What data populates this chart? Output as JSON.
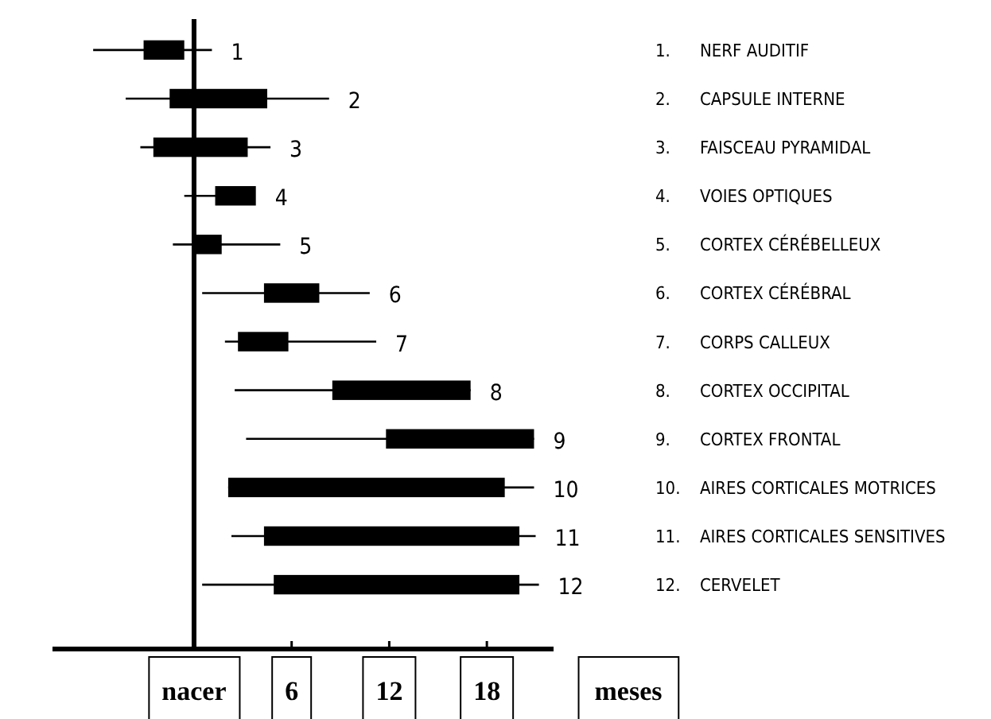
{
  "chart_data": {
    "type": "bar",
    "orientation": "horizontal",
    "color": "#000000",
    "categories": [
      "1",
      "2",
      "3",
      "4",
      "5",
      "6",
      "7",
      "8",
      "9",
      "10",
      "11",
      "12"
    ],
    "base": [
      -3.1,
      -1.5,
      -2.5,
      1.3,
      0.1,
      4.3,
      2.7,
      8.5,
      11.8,
      2.1,
      4.3,
      4.9
    ],
    "values": [
      2.5,
      6.0,
      5.8,
      2.5,
      1.6,
      3.4,
      3.1,
      8.5,
      9.1,
      17.0,
      15.7,
      15.1
    ],
    "errors": [
      [
        -6.2,
        1.1
      ],
      [
        -4.2,
        8.3
      ],
      [
        -3.3,
        4.7
      ],
      [
        -0.6,
        3.7
      ],
      [
        -1.3,
        5.3
      ],
      [
        0.5,
        10.8
      ],
      [
        1.9,
        11.2
      ],
      [
        2.5,
        17.0
      ],
      [
        3.2,
        20.9
      ],
      [
        2.1,
        20.9
      ],
      [
        2.3,
        21.0
      ],
      [
        0.5,
        21.2
      ]
    ],
    "xlim": [
      -8.7,
      22.1
    ],
    "xticks": [
      {
        "value": 0,
        "label": "nacer"
      },
      6,
      12,
      18
    ],
    "xlabel": "meses",
    "ref_lines": [
      {
        "axis": "x",
        "value": 0,
        "label": null
      }
    ],
    "grid": false,
    "annotations": [
      "1. NERF AUDITIF",
      "2. CAPSULE INTERNE",
      "3. FAISCEAU PYRAMIDAL",
      "4. VOIES OPTIQUES",
      "5. CORTEX CÉRÉBELLEUX",
      "6. CORTEX CÉRÉBRAL",
      "7. CORPS CALLEUX",
      "8. CORTEX OCCIPITAL",
      "9. CORTEX FRONTAL",
      "10. AIRES CORTICALES MOTRICES",
      "11. AIRES CORTICALES SENSITIVES",
      "12. CERVELET"
    ]
  }
}
